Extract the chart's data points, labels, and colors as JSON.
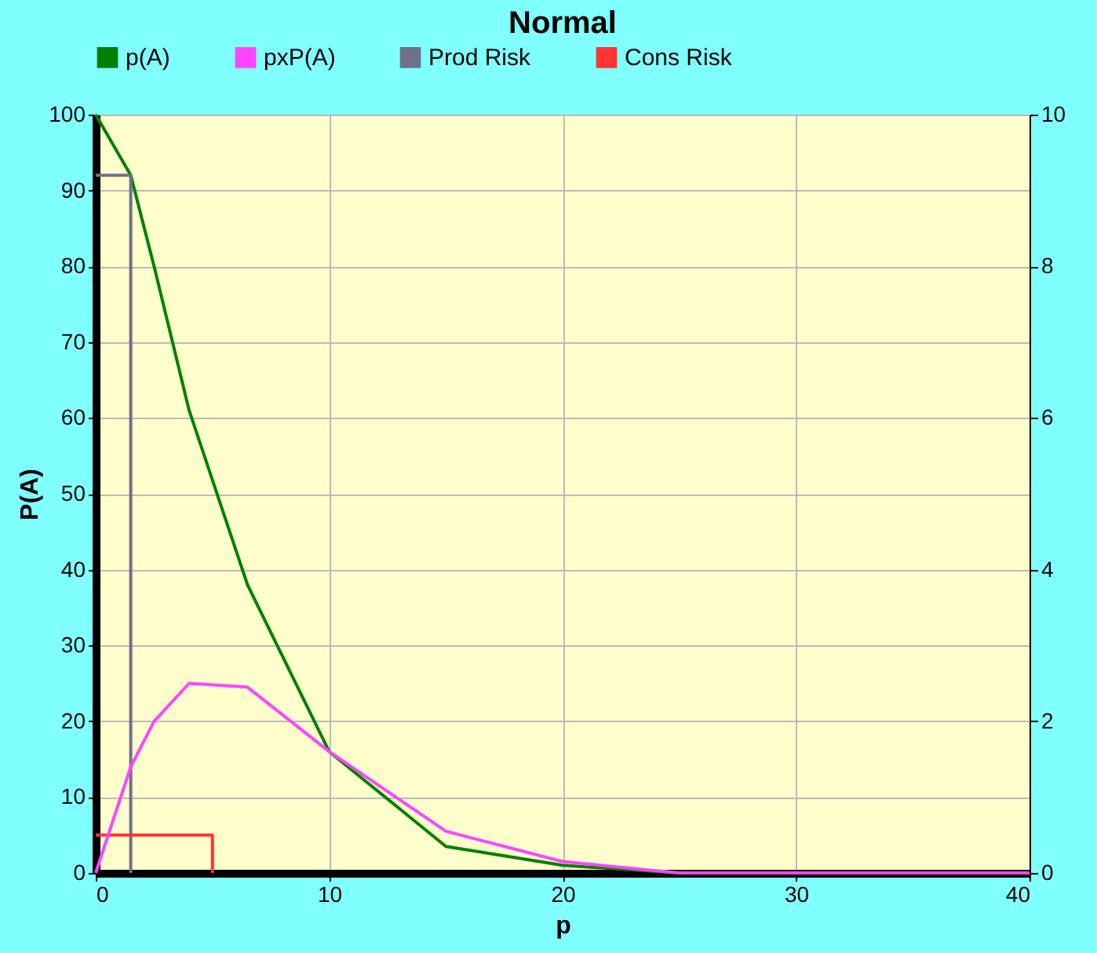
{
  "chart_data": {
    "type": "line",
    "title": "Normal",
    "xlabel": "p",
    "ylabel": "P(A)",
    "xlim": [
      0,
      40
    ],
    "xticks": [
      0,
      10,
      20,
      30,
      40
    ],
    "ylim": [
      0,
      100
    ],
    "yticks": [
      0,
      10,
      20,
      30,
      40,
      50,
      60,
      70,
      80,
      90,
      100
    ],
    "y2lim": [
      0,
      10
    ],
    "y2ticks": [
      0,
      2,
      4,
      6,
      8,
      10
    ],
    "grid": true,
    "legend": "top",
    "marker": "none",
    "line_style": "solid",
    "series": [
      {
        "name": "p(A)",
        "color": "#008000",
        "x": [
          0,
          1.5,
          2.5,
          4,
          6.5,
          10,
          15,
          20,
          25
        ],
        "values": [
          100,
          92,
          80,
          61,
          38,
          16,
          3.5,
          1,
          0
        ]
      },
      {
        "name": "pxP(A)",
        "color": "#ff44ff",
        "axis": "y2",
        "x": [
          0,
          1.5,
          2.5,
          4,
          6.5,
          10,
          15,
          20,
          25,
          30,
          35,
          40
        ],
        "values": [
          0,
          1.4,
          2.0,
          2.5,
          2.45,
          1.6,
          0.55,
          0.15,
          0,
          0,
          0,
          0
        ]
      },
      {
        "name": "Prod Risk",
        "color": "#707088",
        "x": [
          0,
          1.5,
          1.5
        ],
        "values": [
          92,
          92,
          0
        ]
      },
      {
        "name": "Cons Risk",
        "color": "#ff3333",
        "x": [
          0,
          5,
          5
        ],
        "values": [
          5,
          5,
          0
        ]
      }
    ]
  }
}
